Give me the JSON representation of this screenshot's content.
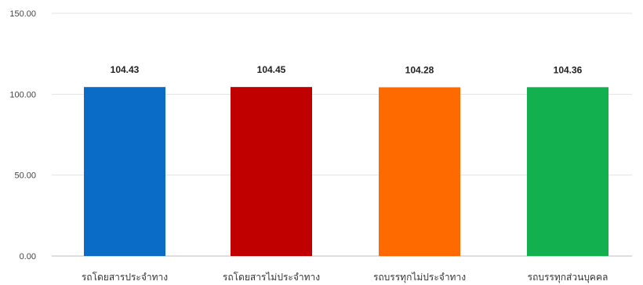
{
  "chart_data": {
    "type": "bar",
    "categories": [
      "รถโดยสารประจำทาง",
      "รถโดยสารไม่ประจำทาง",
      "รถบรรทุกไม่ประจำทาง",
      "รถบรรทุกส่วนบุคคล"
    ],
    "values": [
      104.43,
      104.45,
      104.28,
      104.36
    ],
    "value_labels": [
      "104.43",
      "104.45",
      "104.28",
      "104.36"
    ],
    "bar_colors": [
      "#0a6cc6",
      "#c00000",
      "#ff6a00",
      "#12b04f"
    ],
    "ylim": [
      0,
      150
    ],
    "yticks": [
      0,
      50,
      100,
      150
    ],
    "ytick_labels": [
      "0.00",
      "50.00",
      "100.00",
      "150.00"
    ],
    "grid": true,
    "title": "",
    "xlabel": "",
    "ylabel": ""
  }
}
